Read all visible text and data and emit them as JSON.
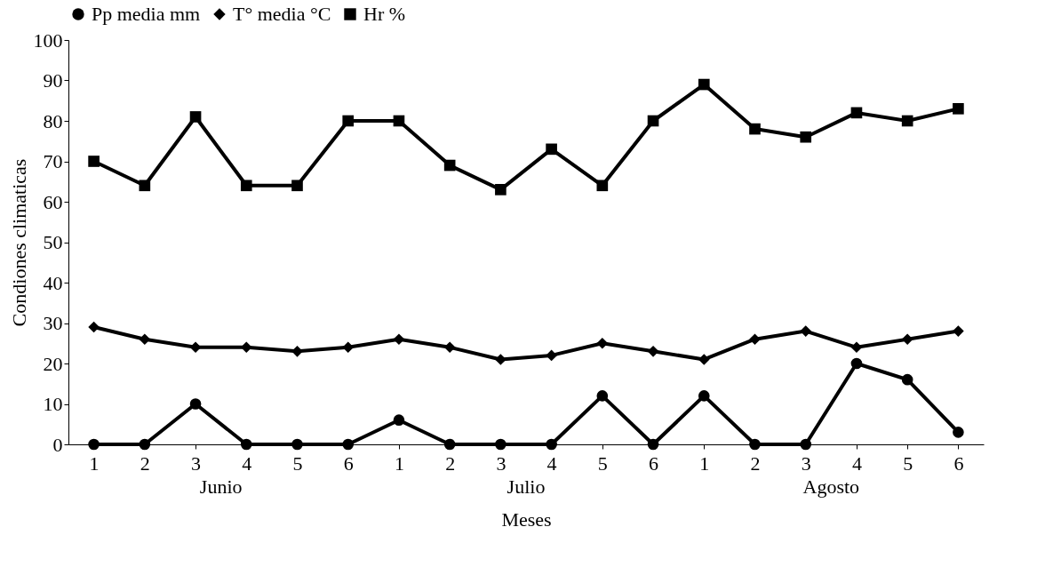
{
  "chart_data": {
    "type": "line",
    "xlabel": "Meses",
    "ylabel": "Condiones climaticas",
    "categories": [
      "1",
      "2",
      "3",
      "4",
      "5",
      "6",
      "1",
      "2",
      "3",
      "4",
      "5",
      "6",
      "1",
      "2",
      "3",
      "4",
      "5",
      "6"
    ],
    "series": [
      {
        "name": "Pp media mm",
        "color": "#000000",
        "marker": "circle",
        "values": [
          0,
          0,
          10,
          0,
          0,
          0,
          6,
          0,
          0,
          0,
          12,
          0,
          12,
          0,
          0,
          20,
          16,
          3
        ]
      },
      {
        "name": "T° media °C",
        "color": "#000000",
        "marker": "diamond",
        "values": [
          29,
          26,
          24,
          24,
          23,
          24,
          26,
          24,
          21,
          22,
          25,
          23,
          21,
          26,
          28,
          24,
          26,
          28
        ]
      },
      {
        "name": "Hr %",
        "color": "#000000",
        "marker": "square",
        "values": [
          70,
          64,
          81,
          64,
          64,
          80,
          80,
          69,
          63,
          73,
          64,
          80,
          89,
          78,
          76,
          82,
          80,
          83
        ]
      }
    ],
    "ylim": [
      0,
      100
    ],
    "yticks": [
      0,
      10,
      20,
      30,
      40,
      50,
      60,
      70,
      80,
      90,
      100
    ],
    "annotations": [
      "Junio",
      "Julio",
      "Agosto"
    ],
    "grid": false,
    "legend": "top",
    "line_style": "solid"
  }
}
